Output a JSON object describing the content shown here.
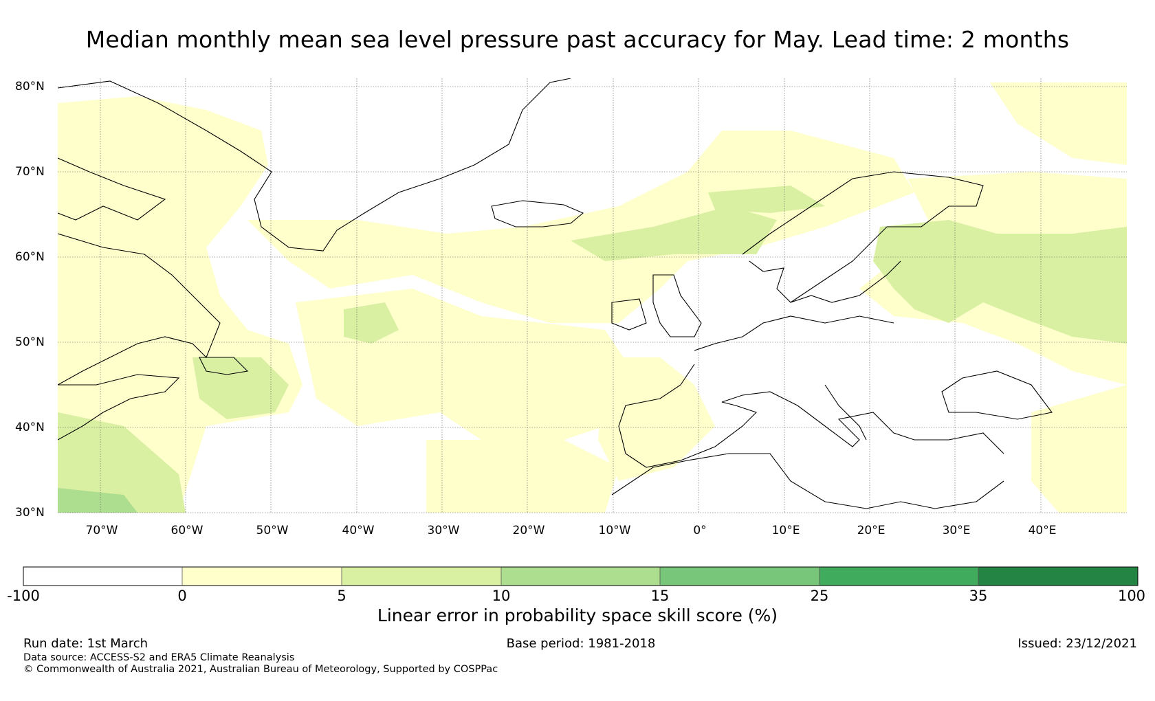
{
  "title": "Median monthly mean sea level pressure past accuracy for May. Lead time: 2 months",
  "map": {
    "lat_labels": [
      "80°N",
      "70°N",
      "60°N",
      "50°N",
      "40°N",
      "30°N"
    ],
    "lon_labels": [
      "70°W",
      "60°W",
      "50°W",
      "40°W",
      "30°W",
      "20°W",
      "10°W",
      "0°",
      "10°E",
      "20°E",
      "30°E",
      "40°E"
    ],
    "lat_range": [
      30,
      81
    ],
    "lon_range": [
      -75,
      50
    ],
    "gridlines": true,
    "field": "Linear error in probability space skill score",
    "colors": {
      "below_0": "#ffffff",
      "0_5": "#ffffcc",
      "5_10": "#d9f0a3",
      "10_15": "#addd8e",
      "15_25": "#78c679",
      "25_35": "#41ab5d",
      "35_100": "#238443",
      "coastline": "#000000"
    }
  },
  "colorbar": {
    "ticks": [
      "-100",
      "0",
      "5",
      "10",
      "15",
      "25",
      "35",
      "100"
    ],
    "colors": [
      "#ffffff",
      "#ffffcc",
      "#d9f0a3",
      "#addd8e",
      "#78c679",
      "#41ab5d",
      "#238443"
    ],
    "label": "Linear error in probability space skill score (%)"
  },
  "footer": {
    "run_date": "Run date: 1st March",
    "base_period": "Base period: 1981-2018",
    "issued": "Issued: 23/12/2021",
    "data_source": "Data source: ACCESS-S2 and ERA5 Climate Reanalysis",
    "copyright": "© Commonwealth of Australia 2021, Australian Bureau of Meteorology, Supported by COSPPac"
  }
}
